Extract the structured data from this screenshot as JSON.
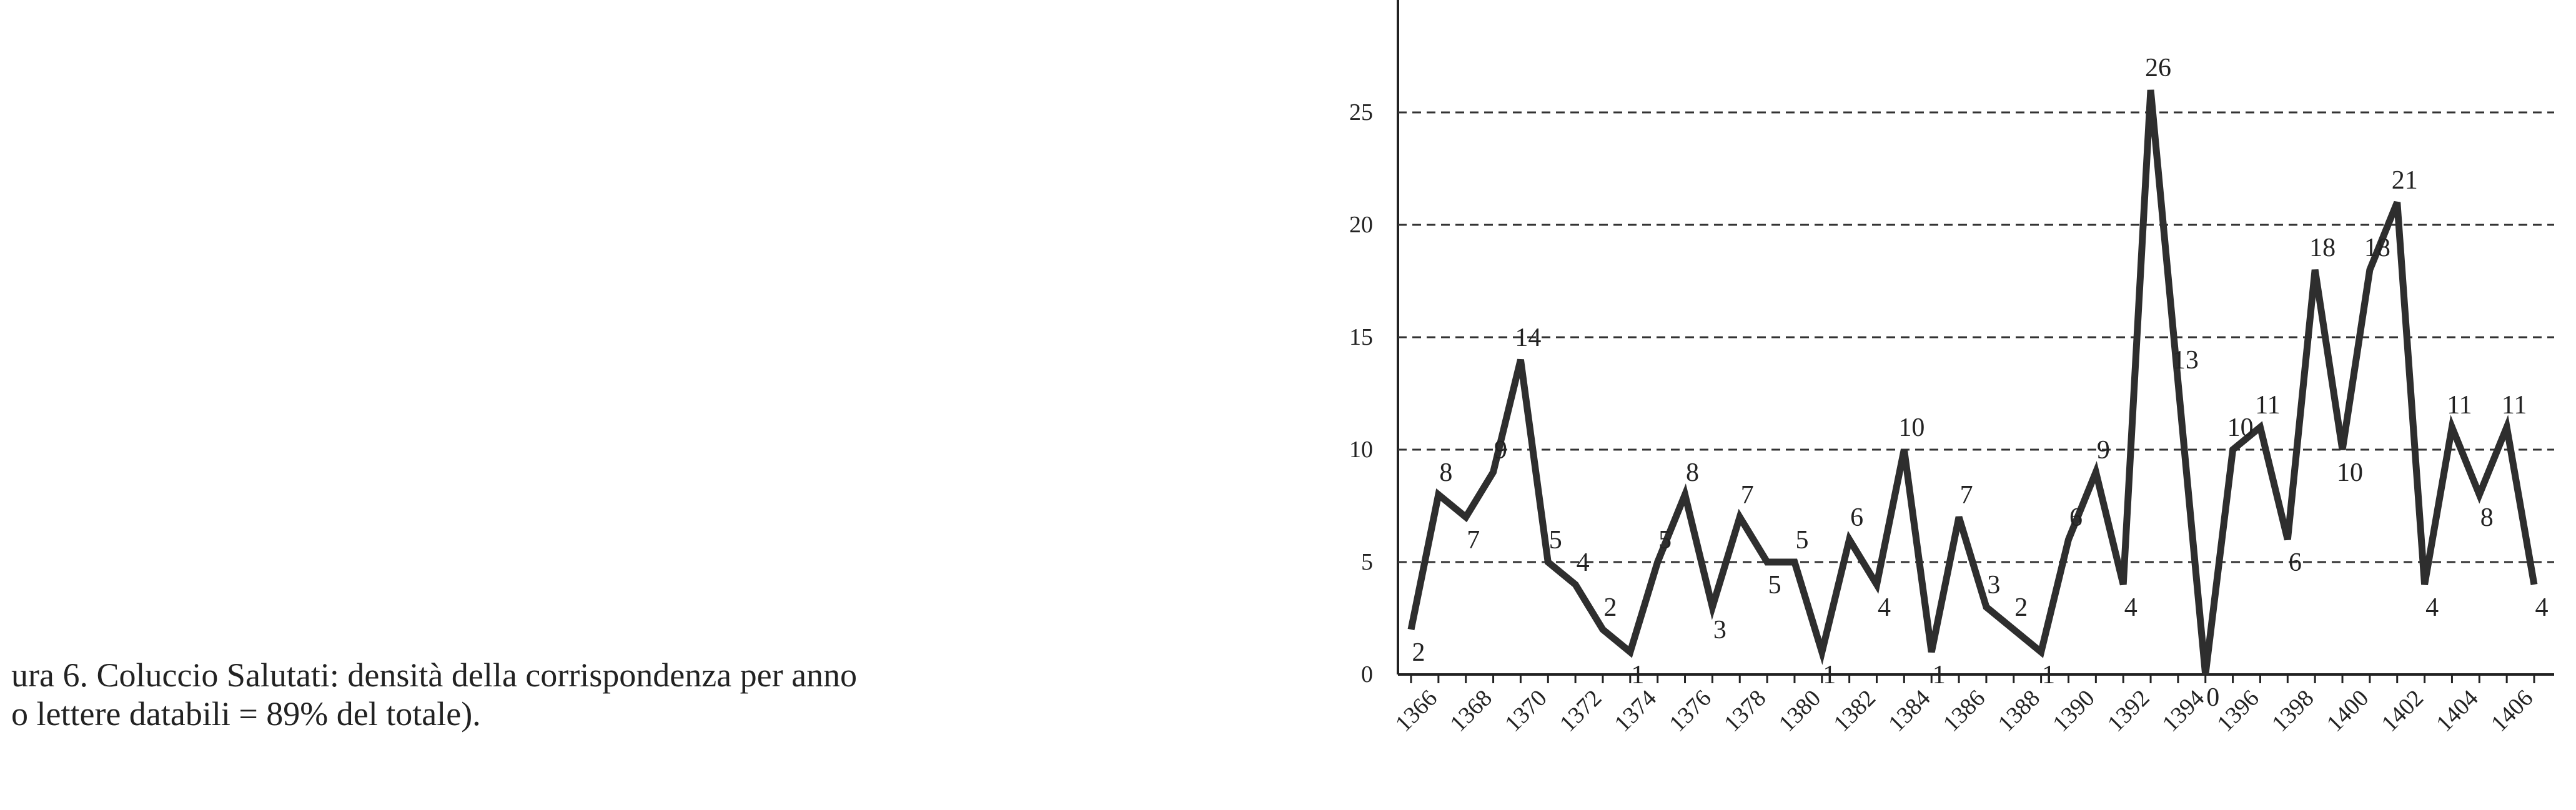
{
  "chart_data": {
    "type": "line",
    "caption": [
      "ura 6. Coluccio Salutati: densità della corrispondenza per anno",
      "o lettere databili = 89% del totale)."
    ],
    "categories": [
      null,
      "1366",
      null,
      "1368",
      null,
      "1370",
      null,
      "1372",
      null,
      "1374",
      null,
      "1376",
      null,
      "1378",
      null,
      "1380",
      null,
      "1382",
      null,
      "1384",
      null,
      "1386",
      null,
      "1388",
      null,
      "1390",
      null,
      "1392",
      null,
      "1394",
      null,
      "1396",
      null,
      "1398",
      null,
      "1400",
      null,
      "1402",
      null,
      "1404",
      null,
      "1406"
    ],
    "series": [
      {
        "color": "#2e2e2e",
        "values": [
          2,
          8,
          7,
          9,
          14,
          5,
          4,
          2,
          1,
          5,
          8,
          3,
          7,
          5,
          5,
          1,
          6,
          4,
          10,
          1,
          7,
          3,
          2,
          1,
          6,
          9,
          4,
          26,
          13,
          0,
          10,
          11,
          6,
          18,
          10,
          18,
          21,
          4,
          11,
          8,
          11,
          4
        ]
      }
    ],
    "ylim": [
      0,
      30
    ],
    "yticks": [
      0,
      5,
      10,
      15,
      20,
      25
    ],
    "grid": true
  }
}
